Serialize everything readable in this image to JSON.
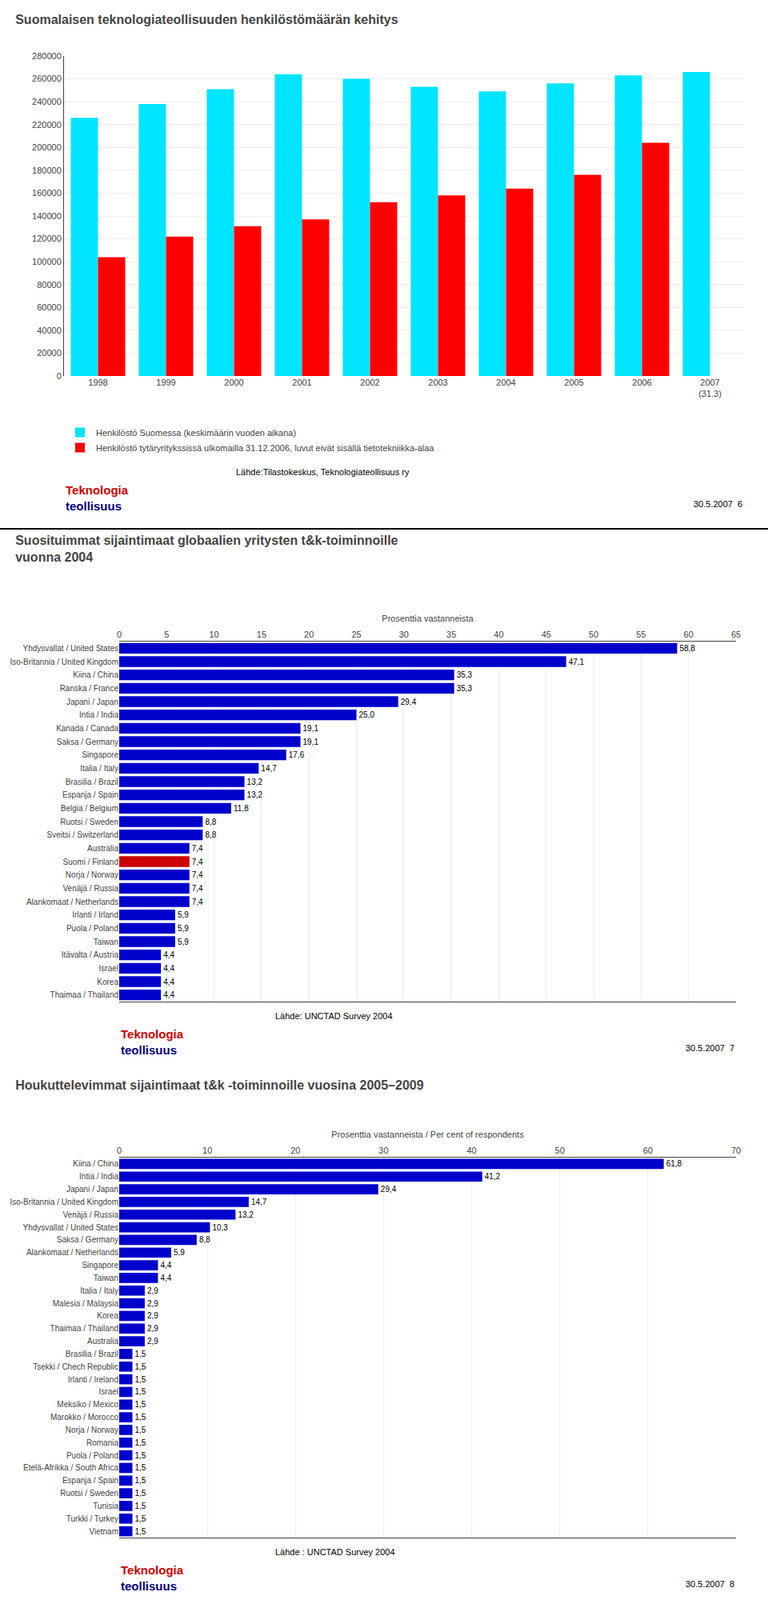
{
  "chart_data": [
    {
      "type": "bar",
      "title": "Suomalaisen teknologiateollisuuden henkilöstömäärän kehitys",
      "categories": [
        "1998",
        "1999",
        "2000",
        "2001",
        "2002",
        "2003",
        "2004",
        "2005",
        "2006",
        "2007\n(31.3)"
      ],
      "series": [
        {
          "name": "Henkilöstö Suomessa (keskimäärin vuoden aikana)",
          "color": "#00E5FF",
          "values": [
            226000,
            238000,
            251000,
            264000,
            260000,
            253000,
            249000,
            256000,
            263000,
            266000
          ]
        },
        {
          "name": "Henkilöstö tytäryritykssissä ulkomailla 31.12.2006, luvut eivät sisällä tietotekniikka-alaa",
          "color": "#FF0000",
          "values": [
            104000,
            122000,
            131000,
            137000,
            152000,
            158000,
            164000,
            176000,
            204000,
            0
          ]
        }
      ],
      "ylim": [
        0,
        280000
      ],
      "yticks": [
        0,
        20000,
        40000,
        60000,
        80000,
        100000,
        120000,
        140000,
        160000,
        180000,
        200000,
        220000,
        240000,
        260000,
        280000
      ],
      "grid": true,
      "legend": "bottom",
      "annotations": [
        {
          "text": "Lähde:Tilastokeskus, Teknologiateollisuus ry"
        },
        {
          "text": "Teknologia",
          "color": "#CC0000"
        },
        {
          "text": "teollisuus",
          "color": "#000080"
        },
        {
          "text": "30.5.2007  6"
        }
      ]
    },
    {
      "type": "bar",
      "title": "Suosituimmat sijaintimaat globaalien yritysten t&k-toiminnoille\nvuonna 2004",
      "xlabel": "Prosenttia vastanneista",
      "orientation": "horizontal",
      "categories": [
        "Yhdysvallat / United States",
        "Iso-Britannia / United Kingdom",
        "Kiina / China",
        "Ranska / France",
        "Japani / Japan",
        "Intia / India",
        "Kanada / Canada",
        "Saksa / Germany",
        "Singapore",
        "Italia / Italy",
        "Brasilia / Brazil",
        "Espanja / Spain",
        "Belgia / Belgium",
        "Ruotsi / Sweden",
        "Sveitsi / Switzerland",
        "Australia",
        "Suomi / Finland",
        "Norja / Norway",
        "Venäjä / Russia",
        "Alankomaat / Netherlands",
        "Irlanti / Irland",
        "Puola / Poland",
        "Taiwan",
        "Itävalta / Austria",
        "Israel",
        "Korea",
        "Thaimaa / Thailand"
      ],
      "values": [
        58.8,
        47.1,
        35.3,
        35.3,
        29.4,
        25.0,
        19.1,
        19.1,
        17.6,
        14.7,
        13.2,
        13.2,
        11.8,
        8.8,
        8.8,
        7.4,
        7.4,
        7.4,
        7.4,
        7.4,
        5.9,
        5.9,
        5.9,
        4.4,
        4.4,
        4.4,
        4.4
      ],
      "value_labels": [
        "58,8",
        "47,1",
        "35,3",
        "35,3",
        "29,4",
        "25,0",
        "19,1",
        "19,1",
        "17,6",
        "14,7",
        "13,2",
        "13,2",
        "11,8",
        "8,8",
        "8,8",
        "7,4",
        "7,4",
        "7,4",
        "7,4",
        "7,4",
        "5,9",
        "5,9",
        "5,9",
        "4,4",
        "4,4",
        "4,4",
        "4,4"
      ],
      "data_labels": true,
      "colors": [
        "#0000CC",
        "#0000CC",
        "#0000CC",
        "#0000CC",
        "#0000CC",
        "#0000CC",
        "#0000CC",
        "#0000CC",
        "#0000CC",
        "#0000CC",
        "#0000CC",
        "#0000CC",
        "#0000CC",
        "#0000CC",
        "#0000CC",
        "#0000CC",
        "#CC0000",
        "#0000CC",
        "#0000CC",
        "#0000CC",
        "#0000CC",
        "#0000CC",
        "#0000CC",
        "#0000CC",
        "#0000CC",
        "#0000CC",
        "#0000CC"
      ],
      "xlim": [
        0,
        65
      ],
      "xticks": [
        0,
        5,
        10,
        15,
        20,
        25,
        30,
        35,
        40,
        45,
        50,
        55,
        60,
        65
      ],
      "grid": true,
      "annotations": [
        {
          "text": "Lähde: UNCTAD Survey 2004"
        },
        {
          "text": "Teknologia",
          "color": "#CC0000"
        },
        {
          "text": "teollisuus",
          "color": "#000080"
        },
        {
          "text": "30.5.2007  7"
        }
      ]
    },
    {
      "type": "bar",
      "title": "Houkuttelevimmat sijaintimaat t&k -toiminnoille vuosina 2005–2009",
      "xlabel": "Prosenttia vastanneista / Per cent of respondents",
      "orientation": "horizontal",
      "categories": [
        "Kiina / China",
        "Intia / India",
        "Japani / Japan",
        "Iso-Britannia / United Kingdom",
        "Venäjä / Russia",
        "Yhdysvallat / United States",
        "Saksa / Germany",
        "Alankomaat / Netherlands",
        "Singapore",
        "Taiwan",
        "Italia / Italy",
        "Malesia / Malaysia",
        "Korea",
        "Thaimaa / Thailand",
        "Australia",
        "Brasilia / Brazil",
        "Tsekki / Chech Republic",
        "Irlanti / Ireland",
        "Israel",
        "Meksiko / Mexico",
        "Marokko / Morocco",
        "Norja / Norway",
        "Romania",
        "Puola / Poland",
        "Etelä-Afrikka / South Africa",
        "Espanja / Spain",
        "Ruotsi / Sweden",
        "Tunisia",
        "Turkki / Turkey",
        "Vietnam"
      ],
      "values": [
        61.8,
        41.2,
        29.4,
        14.7,
        13.2,
        10.3,
        8.8,
        5.9,
        4.4,
        4.4,
        2.9,
        2.9,
        2.9,
        2.9,
        2.9,
        1.5,
        1.5,
        1.5,
        1.5,
        1.5,
        1.5,
        1.5,
        1.5,
        1.5,
        1.5,
        1.5,
        1.5,
        1.5,
        1.5,
        1.5
      ],
      "value_labels": [
        "61,8",
        "41,2",
        "29,4",
        "14,7",
        "13,2",
        "10,3",
        "8,8",
        "5,9",
        "4,4",
        "4,4",
        "2,9",
        "2,9",
        "2,9",
        "2,9",
        "2,9",
        "1,5",
        "1,5",
        "1,5",
        "1,5",
        "1,5",
        "1,5",
        "1,5",
        "1,5",
        "1,5",
        "1,5",
        "1,5",
        "1,5",
        "1,5",
        "1,5",
        "1,5"
      ],
      "data_labels": true,
      "color": "#0000CC",
      "xlim": [
        0,
        70
      ],
      "xticks": [
        0,
        10,
        20,
        30,
        40,
        50,
        60,
        70
      ],
      "grid": true,
      "annotations": [
        {
          "text": "Lähde : UNCTAD Survey 2004"
        },
        {
          "text": "Teknologia",
          "color": "#CC0000"
        },
        {
          "text": "teollisuus",
          "color": "#000080"
        },
        {
          "text": "30.5.2007  8"
        }
      ]
    }
  ]
}
